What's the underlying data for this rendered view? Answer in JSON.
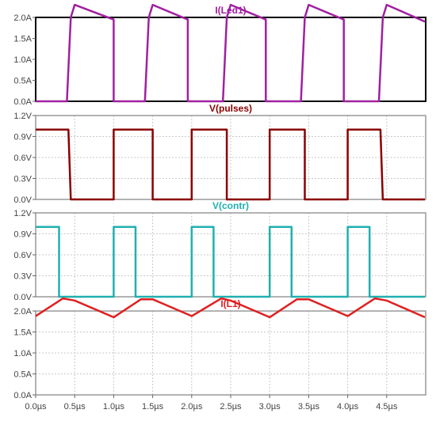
{
  "chart_data": [
    {
      "type": "line",
      "title": "I(Led1)",
      "title_color": "#a020a0",
      "frame_color": "#000000",
      "ylim": [
        0,
        2.0
      ],
      "yticks": [
        "0.0A",
        "0.5A",
        "1.0A",
        "1.5A",
        "2.0A"
      ],
      "grid": false,
      "series": [
        {
          "color": "#a020a0",
          "points": [
            [
              0.0,
              0.0
            ],
            [
              0.4,
              0.0
            ],
            [
              0.45,
              2.0
            ],
            [
              0.5,
              2.3
            ],
            [
              1.0,
              1.95
            ],
            [
              1.0,
              0.0
            ],
            [
              1.4,
              0.0
            ],
            [
              1.45,
              2.0
            ],
            [
              1.5,
              2.3
            ],
            [
              1.95,
              1.95
            ],
            [
              1.95,
              0.0
            ],
            [
              2.4,
              0.0
            ],
            [
              2.45,
              2.0
            ],
            [
              2.5,
              2.3
            ],
            [
              2.95,
              1.95
            ],
            [
              2.95,
              0.0
            ],
            [
              3.4,
              0.0
            ],
            [
              3.45,
              2.0
            ],
            [
              3.5,
              2.3
            ],
            [
              3.95,
              1.95
            ],
            [
              3.95,
              0.0
            ],
            [
              4.4,
              0.0
            ],
            [
              4.45,
              2.0
            ],
            [
              4.5,
              2.3
            ],
            [
              4.99,
              1.9
            ]
          ]
        }
      ]
    },
    {
      "type": "line",
      "title": "V(pulses)",
      "title_color": "#8b0000",
      "frame_color": "#999999",
      "ylim": [
        0,
        1.2
      ],
      "yticks": [
        "0.0V",
        "0.3V",
        "0.6V",
        "0.9V",
        "1.2V"
      ],
      "grid": true,
      "series": [
        {
          "color": "#8b0000",
          "points": [
            [
              0.0,
              1.0
            ],
            [
              0.42,
              1.0
            ],
            [
              0.45,
              0.0
            ],
            [
              1.0,
              0.0
            ],
            [
              1.0,
              1.0
            ],
            [
              1.5,
              1.0
            ],
            [
              1.5,
              0.0
            ],
            [
              2.0,
              0.0
            ],
            [
              2.0,
              1.0
            ],
            [
              2.45,
              1.0
            ],
            [
              2.45,
              0.0
            ],
            [
              3.0,
              0.0
            ],
            [
              3.0,
              1.0
            ],
            [
              3.45,
              1.0
            ],
            [
              3.45,
              0.0
            ],
            [
              4.0,
              0.0
            ],
            [
              4.0,
              1.0
            ],
            [
              4.42,
              1.0
            ],
            [
              4.45,
              0.0
            ],
            [
              4.99,
              0.0
            ]
          ]
        }
      ]
    },
    {
      "type": "line",
      "title": "V(contr)",
      "title_color": "#20b0b0",
      "frame_color": "#999999",
      "ylim": [
        0,
        1.2
      ],
      "yticks": [
        "0.0V",
        "0.3V",
        "0.6V",
        "0.9V",
        "1.2V"
      ],
      "grid": true,
      "series": [
        {
          "color": "#20b0b0",
          "points": [
            [
              0.0,
              1.0
            ],
            [
              0.3,
              1.0
            ],
            [
              0.3,
              0.0
            ],
            [
              1.0,
              0.0
            ],
            [
              1.0,
              1.0
            ],
            [
              1.28,
              1.0
            ],
            [
              1.28,
              0.0
            ],
            [
              2.0,
              0.0
            ],
            [
              2.0,
              1.0
            ],
            [
              2.28,
              1.0
            ],
            [
              2.28,
              0.0
            ],
            [
              3.0,
              0.0
            ],
            [
              3.0,
              1.0
            ],
            [
              3.28,
              1.0
            ],
            [
              3.28,
              0.0
            ],
            [
              4.0,
              0.0
            ],
            [
              4.0,
              1.0
            ],
            [
              4.28,
              1.0
            ],
            [
              4.28,
              0.0
            ],
            [
              4.99,
              0.0
            ]
          ]
        }
      ]
    },
    {
      "type": "line",
      "title": "I(L1)",
      "title_color": "#e02020",
      "frame_color": "#999999",
      "ylim": [
        0,
        2.0
      ],
      "yticks": [
        "0.0A",
        "0.5A",
        "1.0A",
        "1.5A",
        "2.0A"
      ],
      "grid": true,
      "series": [
        {
          "color": "#e02020",
          "points": [
            [
              0.0,
              1.88
            ],
            [
              0.35,
              2.3
            ],
            [
              0.5,
              2.25
            ],
            [
              1.0,
              1.85
            ],
            [
              1.35,
              2.28
            ],
            [
              1.5,
              2.28
            ],
            [
              2.0,
              1.88
            ],
            [
              2.38,
              2.3
            ],
            [
              2.5,
              2.25
            ],
            [
              3.0,
              1.85
            ],
            [
              3.35,
              2.28
            ],
            [
              3.5,
              2.28
            ],
            [
              4.0,
              1.88
            ],
            [
              4.35,
              2.3
            ],
            [
              4.5,
              2.25
            ],
            [
              4.99,
              1.85
            ]
          ]
        }
      ]
    }
  ],
  "x_axis": {
    "min": 0.0,
    "max": 5.0,
    "ticks": [
      "0.0µs",
      "0.5µs",
      "1.0µs",
      "1.5µs",
      "2.0µs",
      "2.5µs",
      "3.0µs",
      "3.5µs",
      "4.0µs",
      "4.5µs"
    ],
    "tick_values": [
      0.0,
      0.5,
      1.0,
      1.5,
      2.0,
      2.5,
      3.0,
      3.5,
      4.0,
      4.5
    ]
  }
}
